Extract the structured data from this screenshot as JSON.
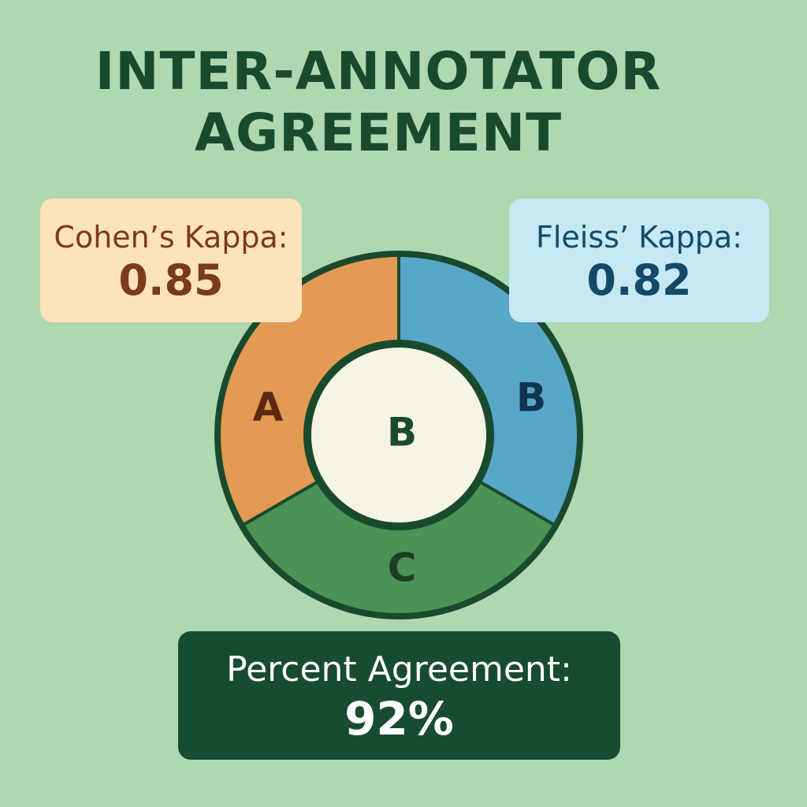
{
  "title": {
    "line1": "INTER-ANNOTATOR",
    "line2": "AGREEMENT"
  },
  "cards": {
    "cohen": {
      "label": "Cohen’s Kappa:",
      "value": "0.85"
    },
    "fleiss": {
      "label": "Fleiss’ Kappa:",
      "value": "0.82"
    },
    "percent": {
      "label": "Percent Agreement:",
      "value": "92%"
    }
  },
  "diagram": {
    "segments": [
      {
        "label": "A",
        "color": "#e39a52",
        "text_color": "#5c2a12"
      },
      {
        "label": "B",
        "color": "#58a6c8",
        "text_color": "#0f3350"
      },
      {
        "label": "C",
        "color": "#4a9255",
        "text_color": "#1a3f24"
      }
    ],
    "center_label": "B",
    "center_fill": "#f8f4e4",
    "outline_color": "#1a4a2e"
  },
  "colors": {
    "background": "#afd8b0",
    "title": "#1a4a2e",
    "cohen_bg": "#fde3bc",
    "cohen_text": "#7b3a18",
    "fleiss_bg": "#c6e8f2",
    "fleiss_text": "#134a6a",
    "percent_bg": "#184c31",
    "percent_text": "#ffffff"
  }
}
